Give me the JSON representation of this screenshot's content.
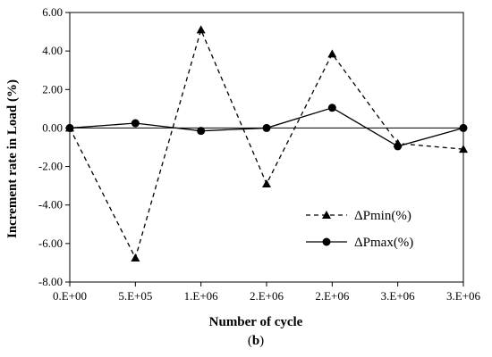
{
  "chart_data": {
    "type": "line",
    "xlabel": "Number of cycle",
    "ylabel": "Increment rate in Load (%)",
    "caption_open": "(",
    "caption_letter": "b",
    "caption_close": ")",
    "x_tick_labels": [
      "0.E+00",
      "5.E+05",
      "1.E+06",
      "2.E+06",
      "2.E+06",
      "3.E+06",
      "3.E+06"
    ],
    "y_tick_labels": [
      "6.00",
      "4.00",
      "2.00",
      "0.00",
      "-2.00",
      "-4.00",
      "-6.00",
      "-8.00"
    ],
    "ylim": [
      -8,
      6
    ],
    "grid": false,
    "legend_position": "lower-right",
    "series": [
      {
        "name": "ΔPmin(%)",
        "marker": "triangle",
        "dash": "dashed",
        "color": "#000000",
        "x": [
          0,
          500000,
          1000000,
          1500000,
          2000000,
          2500000,
          3000000
        ],
        "y": [
          0.0,
          -6.75,
          5.1,
          -2.9,
          3.85,
          -0.8,
          -1.1
        ]
      },
      {
        "name": "ΔPmax(%)",
        "marker": "circle",
        "dash": "solid",
        "color": "#000000",
        "x": [
          0,
          500000,
          1000000,
          1500000,
          2000000,
          2500000,
          3000000
        ],
        "y": [
          0.0,
          0.25,
          -0.15,
          0.0,
          1.05,
          -0.95,
          0.0
        ]
      }
    ]
  }
}
